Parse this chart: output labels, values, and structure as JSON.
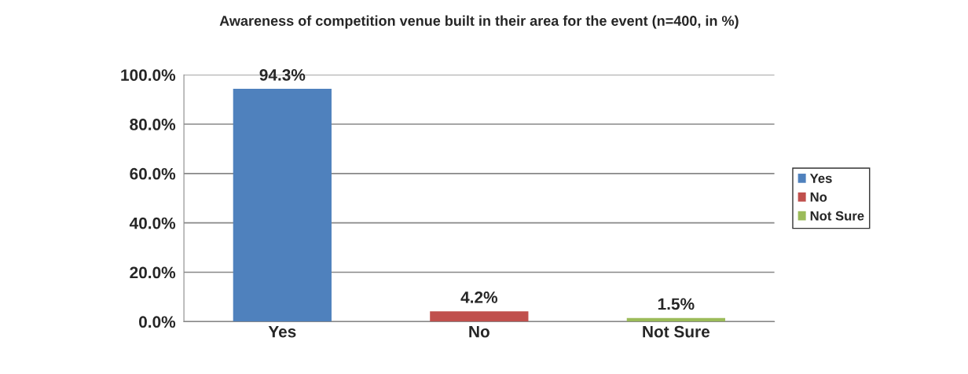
{
  "chart_data": {
    "type": "bar",
    "title": "Awareness of competition venue built in their area for the event (n=400, in %)",
    "categories": [
      "Yes",
      "No",
      "Not Sure"
    ],
    "series": [
      {
        "name": "Yes",
        "color": "#4f81bd",
        "values": [
          94.3,
          null,
          null
        ],
        "value_labels": [
          "94.3%",
          null,
          null
        ]
      },
      {
        "name": "No",
        "color": "#c0504d",
        "values": [
          null,
          4.2,
          null
        ],
        "value_labels": [
          null,
          "4.2%",
          null
        ]
      },
      {
        "name": "Not Sure",
        "color": "#9bbb59",
        "values": [
          null,
          null,
          1.5
        ],
        "value_labels": [
          null,
          null,
          "1.5%"
        ]
      }
    ],
    "ylim": [
      0,
      100
    ],
    "yticks": [
      {
        "value": 0,
        "label": "0.0%"
      },
      {
        "value": 20,
        "label": "20.0%"
      },
      {
        "value": 40,
        "label": "40.0%"
      },
      {
        "value": 60,
        "label": "60.0%"
      },
      {
        "value": 80,
        "label": "80.0%"
      },
      {
        "value": 100,
        "label": "100.0%"
      }
    ],
    "grid": "y",
    "legend": "right"
  }
}
